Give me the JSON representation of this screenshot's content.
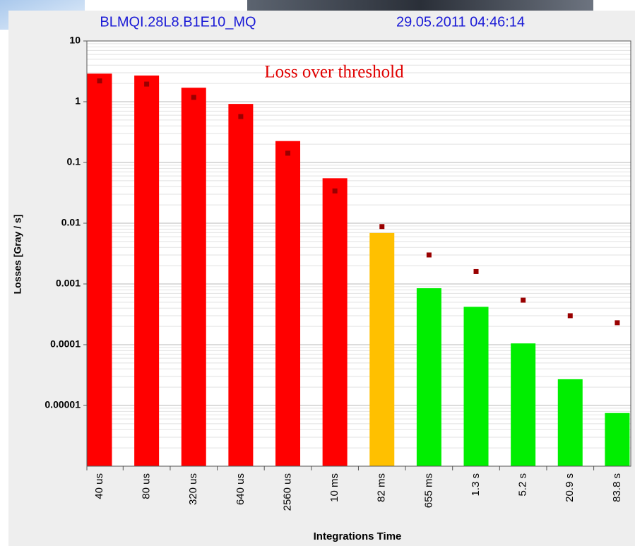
{
  "chart_data": {
    "type": "bar",
    "header_left": "BLMQI.28L8.B1E10_MQ",
    "header_right": "29.05.2011 04:46:14",
    "annotation": "Loss over threshold",
    "ylabel": "Losses [Gray / s]",
    "xlabel": "Integrations Time",
    "categories": [
      "40 us",
      "80 us",
      "320 us",
      "640 us",
      "2560 us",
      "10 ms",
      "82 ms",
      "655 ms",
      "1.3 s",
      "5.2 s",
      "20.9 s",
      "83.8 s"
    ],
    "values": [
      2.9,
      2.7,
      1.7,
      0.92,
      0.225,
      0.055,
      0.0069,
      0.00085,
      0.00042,
      0.000105,
      2.7e-05,
      7.5e-06
    ],
    "bar_colors": [
      "#ff0000",
      "#ff0000",
      "#ff0000",
      "#ff0000",
      "#ff0000",
      "#ff0000",
      "#ffc000",
      "#00ee00",
      "#00ee00",
      "#00ee00",
      "#00ee00",
      "#00ee00"
    ],
    "thresholds": [
      2.2,
      1.95,
      1.18,
      0.57,
      0.142,
      0.034,
      0.0088,
      0.003,
      0.0016,
      0.00054,
      0.0003,
      0.00023
    ],
    "threshold_color": "#990000",
    "log_y": true,
    "ylim": [
      1e-06,
      10
    ],
    "yticks": [
      10,
      1,
      0.1,
      0.01,
      0.001,
      0.0001,
      1e-05
    ],
    "grid": true
  }
}
